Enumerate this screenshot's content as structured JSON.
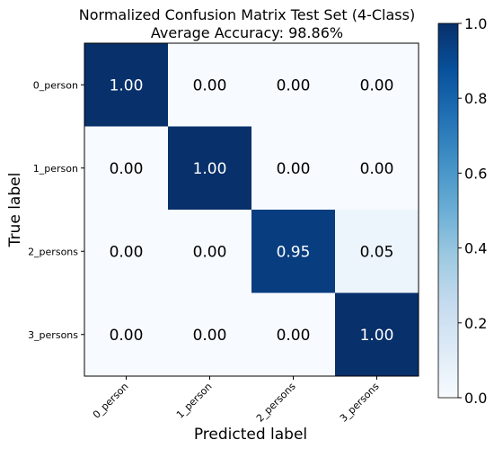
{
  "chart_data": {
    "type": "heatmap",
    "title_line1": "Normalized Confusion Matrix Test Set (4-Class)",
    "title_line2": "Average Accuracy: 98.86%",
    "xlabel": "Predicted label",
    "ylabel": "True label",
    "x_categories": [
      "0_person",
      "1_person",
      "2_persons",
      "3_persons"
    ],
    "y_categories": [
      "0_person",
      "1_person",
      "2_persons",
      "3_persons"
    ],
    "values": [
      [
        1.0,
        0.0,
        0.0,
        0.0
      ],
      [
        0.0,
        1.0,
        0.0,
        0.0
      ],
      [
        0.0,
        0.0,
        0.95,
        0.05
      ],
      [
        0.0,
        0.0,
        0.0,
        1.0
      ]
    ],
    "value_labels": [
      [
        "1.00",
        "0.00",
        "0.00",
        "0.00"
      ],
      [
        "0.00",
        "1.00",
        "0.00",
        "0.00"
      ],
      [
        "0.00",
        "0.00",
        "0.95",
        "0.05"
      ],
      [
        "0.00",
        "0.00",
        "0.00",
        "1.00"
      ]
    ],
    "colorbar": {
      "range": [
        0.0,
        1.0
      ],
      "ticks": [
        "0.0",
        "0.2",
        "0.4",
        "0.6",
        "0.8",
        "1.0"
      ],
      "low_color": "#f7fbff",
      "high_color": "#08306b"
    },
    "colormap": "Blues"
  }
}
